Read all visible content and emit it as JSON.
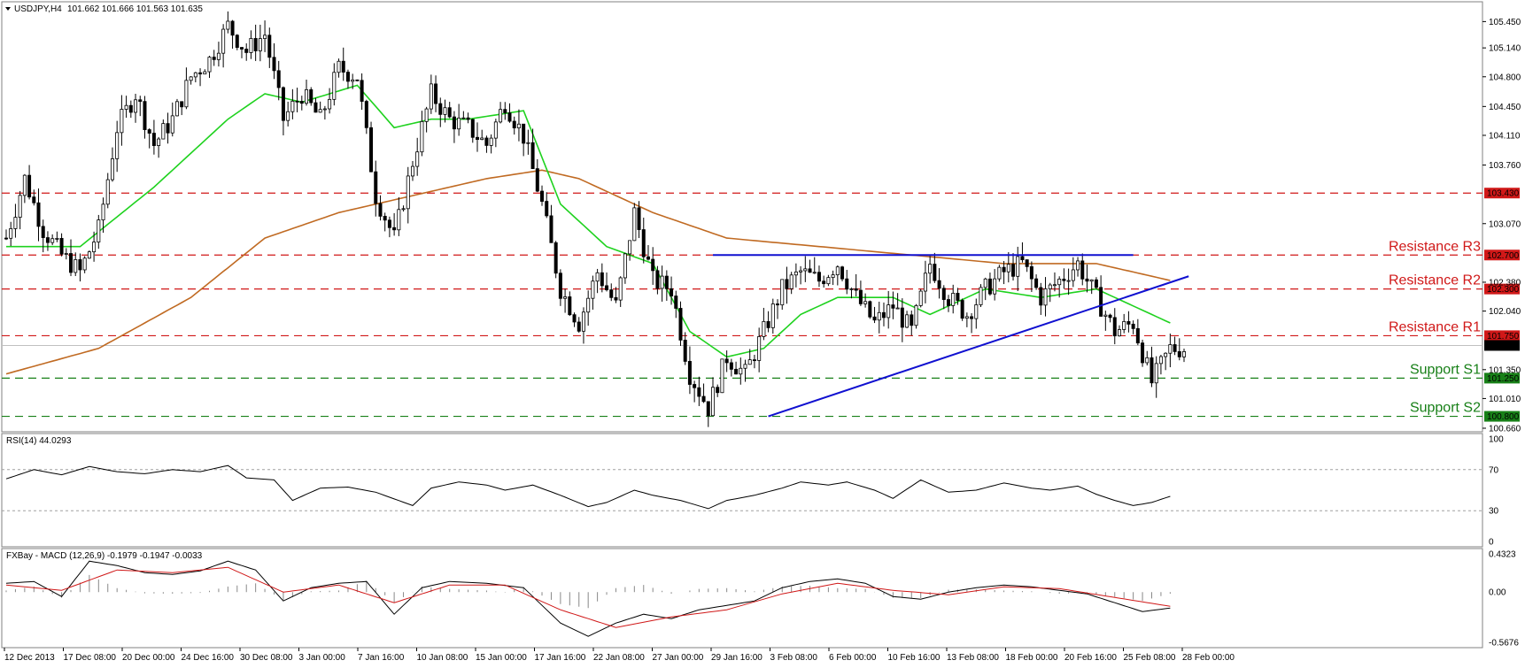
{
  "window": {
    "title": "USDJPY,H4",
    "ohlc": "101.662 101.666 101.563 101.635"
  },
  "colors": {
    "bull_candle": "#000000",
    "bear_candle": "#000000",
    "sma_fast": "#1fd21f",
    "sma_slow": "#c06a22",
    "trendline": "#1010d0",
    "resistance": "#d01818",
    "support": "#188018",
    "rsi_line": "#000000",
    "macd_line": "#000000",
    "signal_line": "#d01818",
    "histogram": "#888888"
  },
  "chart_data": [
    {
      "type": "line",
      "name": "price-panel",
      "title": "USDJPY,H4",
      "ylim": [
        100.66,
        105.6
      ],
      "yticks": [
        "105.450",
        "105.140",
        "104.800",
        "104.450",
        "104.110",
        "103.760",
        "103.070",
        "102.380",
        "102.040",
        "101.350",
        "101.010",
        "100.660"
      ],
      "x_labels": [
        "12 Dec 2013",
        "17 Dec 08:00",
        "20 Dec 00:00",
        "24 Dec 16:00",
        "30 Dec 08:00",
        "3 Jan 00:00",
        "7 Jan 16:00",
        "10 Jan 08:00",
        "15 Jan 00:00",
        "17 Jan 16:00",
        "22 Jan 08:00",
        "27 Jan 00:00",
        "29 Jan 16:00",
        "3 Feb 08:00",
        "6 Feb 00:00",
        "10 Feb 16:00",
        "13 Feb 08:00",
        "18 Feb 00:00",
        "20 Feb 16:00",
        "25 Feb 08:00",
        "28 Feb 00:00"
      ],
      "close_path": [
        [
          0,
          102.9
        ],
        [
          4,
          103.6
        ],
        [
          8,
          103.0
        ],
        [
          12,
          102.7
        ],
        [
          16,
          102.5
        ],
        [
          20,
          103.0
        ],
        [
          24,
          104.2
        ],
        [
          28,
          104.6
        ],
        [
          32,
          104.0
        ],
        [
          36,
          104.3
        ],
        [
          40,
          104.8
        ],
        [
          44,
          105.0
        ],
        [
          48,
          105.4
        ],
        [
          52,
          105.1
        ],
        [
          56,
          105.3
        ],
        [
          60,
          104.3
        ],
        [
          64,
          104.6
        ],
        [
          68,
          104.3
        ],
        [
          72,
          104.9
        ],
        [
          76,
          104.8
        ],
        [
          80,
          103.4
        ],
        [
          84,
          102.9
        ],
        [
          88,
          103.8
        ],
        [
          92,
          104.6
        ],
        [
          96,
          104.3
        ],
        [
          100,
          104.2
        ],
        [
          104,
          104.0
        ],
        [
          108,
          104.5
        ],
        [
          112,
          104.1
        ],
        [
          116,
          103.3
        ],
        [
          120,
          102.3
        ],
        [
          124,
          101.9
        ],
        [
          128,
          102.5
        ],
        [
          132,
          102.1
        ],
        [
          136,
          103.2
        ],
        [
          140,
          102.4
        ],
        [
          144,
          102.3
        ],
        [
          148,
          101.3
        ],
        [
          152,
          100.9
        ],
        [
          156,
          101.5
        ],
        [
          160,
          101.3
        ],
        [
          164,
          101.8
        ],
        [
          168,
          102.3
        ],
        [
          172,
          102.5
        ],
        [
          176,
          102.4
        ],
        [
          180,
          102.6
        ],
        [
          184,
          102.2
        ],
        [
          188,
          101.9
        ],
        [
          192,
          102.1
        ],
        [
          196,
          101.8
        ],
        [
          200,
          102.6
        ],
        [
          204,
          102.2
        ],
        [
          208,
          102.0
        ],
        [
          212,
          102.3
        ],
        [
          216,
          102.5
        ],
        [
          220,
          102.6
        ],
        [
          224,
          102.2
        ],
        [
          228,
          102.4
        ],
        [
          232,
          102.6
        ],
        [
          236,
          102.2
        ],
        [
          240,
          101.8
        ],
        [
          244,
          101.9
        ],
        [
          248,
          101.2
        ],
        [
          252,
          101.6
        ]
      ],
      "sma_fast": [
        [
          0,
          102.8
        ],
        [
          16,
          102.8
        ],
        [
          32,
          103.5
        ],
        [
          48,
          104.3
        ],
        [
          56,
          104.6
        ],
        [
          64,
          104.5
        ],
        [
          76,
          104.7
        ],
        [
          84,
          104.2
        ],
        [
          92,
          104.3
        ],
        [
          100,
          104.3
        ],
        [
          112,
          104.4
        ],
        [
          120,
          103.3
        ],
        [
          130,
          102.8
        ],
        [
          140,
          102.6
        ],
        [
          148,
          101.8
        ],
        [
          156,
          101.5
        ],
        [
          164,
          101.6
        ],
        [
          172,
          102.0
        ],
        [
          180,
          102.2
        ],
        [
          192,
          102.2
        ],
        [
          200,
          102.0
        ],
        [
          212,
          102.3
        ],
        [
          224,
          102.2
        ],
        [
          236,
          102.3
        ],
        [
          244,
          102.1
        ],
        [
          252,
          101.9
        ]
      ],
      "sma_slow": [
        [
          0,
          101.3
        ],
        [
          20,
          101.6
        ],
        [
          40,
          102.2
        ],
        [
          56,
          102.9
        ],
        [
          72,
          103.2
        ],
        [
          88,
          103.4
        ],
        [
          104,
          103.6
        ],
        [
          116,
          103.7
        ],
        [
          124,
          103.6
        ],
        [
          140,
          103.2
        ],
        [
          156,
          102.9
        ],
        [
          176,
          102.8
        ],
        [
          196,
          102.7
        ],
        [
          216,
          102.6
        ],
        [
          236,
          102.6
        ],
        [
          252,
          102.4
        ]
      ],
      "levels": [
        {
          "name": "103.430",
          "value": 103.43,
          "kind": "resistance",
          "label": ""
        },
        {
          "name": "Resistance R3",
          "value": 102.7,
          "kind": "resistance",
          "label": "Resistance R3"
        },
        {
          "name": "Resistance R2",
          "value": 102.3,
          "kind": "resistance",
          "label": "Resistance R2"
        },
        {
          "name": "Resistance R1",
          "value": 101.75,
          "kind": "resistance",
          "label": "Resistance R1"
        },
        {
          "name": "Support S1",
          "value": 101.25,
          "kind": "support",
          "label": "Support S1"
        },
        {
          "name": "Support S2",
          "value": 100.8,
          "kind": "support",
          "label": "Support S2"
        }
      ],
      "level_badges": [
        "103.430",
        "102.700",
        "102.300",
        "101.750",
        "101.250",
        "100.800"
      ],
      "current_price": {
        "value": 101.635,
        "label": "101.635"
      },
      "trendlines": [
        {
          "name": "horizontal-top",
          "from": [
            153,
            102.7
          ],
          "to": [
            244,
            102.7
          ]
        },
        {
          "name": "ascending",
          "from": [
            165,
            100.8
          ],
          "to": [
            256,
            102.45
          ]
        }
      ]
    },
    {
      "type": "line",
      "name": "rsi-panel",
      "title": "RSI(14) 44.0293",
      "ylim": [
        0,
        100
      ],
      "yticks": [
        "100",
        "70",
        "30",
        "0"
      ],
      "series": [
        {
          "name": "RSI(14)",
          "values": [
            [
              0,
              61
            ],
            [
              6,
              70
            ],
            [
              12,
              65
            ],
            [
              18,
              73
            ],
            [
              24,
              68
            ],
            [
              30,
              66
            ],
            [
              36,
              70
            ],
            [
              42,
              68
            ],
            [
              48,
              74
            ],
            [
              52,
              62
            ],
            [
              58,
              60
            ],
            [
              62,
              40
            ],
            [
              68,
              52
            ],
            [
              74,
              53
            ],
            [
              80,
              48
            ],
            [
              88,
              35
            ],
            [
              92,
              52
            ],
            [
              98,
              58
            ],
            [
              104,
              55
            ],
            [
              108,
              50
            ],
            [
              114,
              55
            ],
            [
              120,
              45
            ],
            [
              126,
              34
            ],
            [
              130,
              38
            ],
            [
              136,
              50
            ],
            [
              140,
              45
            ],
            [
              146,
              40
            ],
            [
              152,
              32
            ],
            [
              156,
              40
            ],
            [
              162,
              45
            ],
            [
              168,
              52
            ],
            [
              172,
              58
            ],
            [
              178,
              55
            ],
            [
              182,
              58
            ],
            [
              188,
              50
            ],
            [
              192,
              42
            ],
            [
              198,
              60
            ],
            [
              204,
              48
            ],
            [
              210,
              50
            ],
            [
              216,
              57
            ],
            [
              222,
              52
            ],
            [
              226,
              50
            ],
            [
              232,
              54
            ],
            [
              236,
              46
            ],
            [
              240,
              40
            ],
            [
              244,
              35
            ],
            [
              248,
              38
            ],
            [
              252,
              44
            ]
          ]
        }
      ]
    },
    {
      "type": "line",
      "name": "macd-panel",
      "title": "FXBay - MACD (12,26,9) -0.1979 -0.1947 -0.0033",
      "ylim": [
        -0.5676,
        0.4323
      ],
      "yticks": [
        "0.4323",
        "0.00",
        "-0.5676"
      ],
      "series": [
        {
          "name": "MACD",
          "values": [
            [
              0,
              0.1
            ],
            [
              6,
              0.12
            ],
            [
              12,
              -0.05
            ],
            [
              18,
              0.35
            ],
            [
              24,
              0.3
            ],
            [
              30,
              0.22
            ],
            [
              36,
              0.2
            ],
            [
              42,
              0.24
            ],
            [
              48,
              0.35
            ],
            [
              54,
              0.25
            ],
            [
              60,
              -0.1
            ],
            [
              66,
              0.05
            ],
            [
              72,
              0.1
            ],
            [
              78,
              0.12
            ],
            [
              84,
              -0.25
            ],
            [
              90,
              0.05
            ],
            [
              96,
              0.12
            ],
            [
              104,
              0.1
            ],
            [
              112,
              0.05
            ],
            [
              120,
              -0.35
            ],
            [
              126,
              -0.5
            ],
            [
              132,
              -0.35
            ],
            [
              138,
              -0.25
            ],
            [
              144,
              -0.3
            ],
            [
              150,
              -0.2
            ],
            [
              156,
              -0.15
            ],
            [
              162,
              -0.1
            ],
            [
              168,
              0.05
            ],
            [
              174,
              0.12
            ],
            [
              180,
              0.15
            ],
            [
              186,
              0.1
            ],
            [
              192,
              -0.05
            ],
            [
              198,
              -0.08
            ],
            [
              204,
              0.0
            ],
            [
              210,
              0.05
            ],
            [
              216,
              0.08
            ],
            [
              222,
              0.06
            ],
            [
              228,
              0.02
            ],
            [
              234,
              -0.02
            ],
            [
              240,
              -0.12
            ],
            [
              246,
              -0.22
            ],
            [
              252,
              -0.18
            ]
          ]
        },
        {
          "name": "Signal",
          "values": [
            [
              0,
              0.08
            ],
            [
              12,
              0.02
            ],
            [
              24,
              0.25
            ],
            [
              36,
              0.22
            ],
            [
              48,
              0.28
            ],
            [
              60,
              0.0
            ],
            [
              72,
              0.08
            ],
            [
              84,
              -0.12
            ],
            [
              96,
              0.08
            ],
            [
              108,
              0.08
            ],
            [
              120,
              -0.2
            ],
            [
              132,
              -0.4
            ],
            [
              144,
              -0.28
            ],
            [
              156,
              -0.2
            ],
            [
              168,
              -0.02
            ],
            [
              180,
              0.1
            ],
            [
              192,
              0.02
            ],
            [
              204,
              -0.03
            ],
            [
              216,
              0.06
            ],
            [
              228,
              0.04
            ],
            [
              240,
              -0.06
            ],
            [
              252,
              -0.16
            ]
          ]
        }
      ]
    }
  ]
}
